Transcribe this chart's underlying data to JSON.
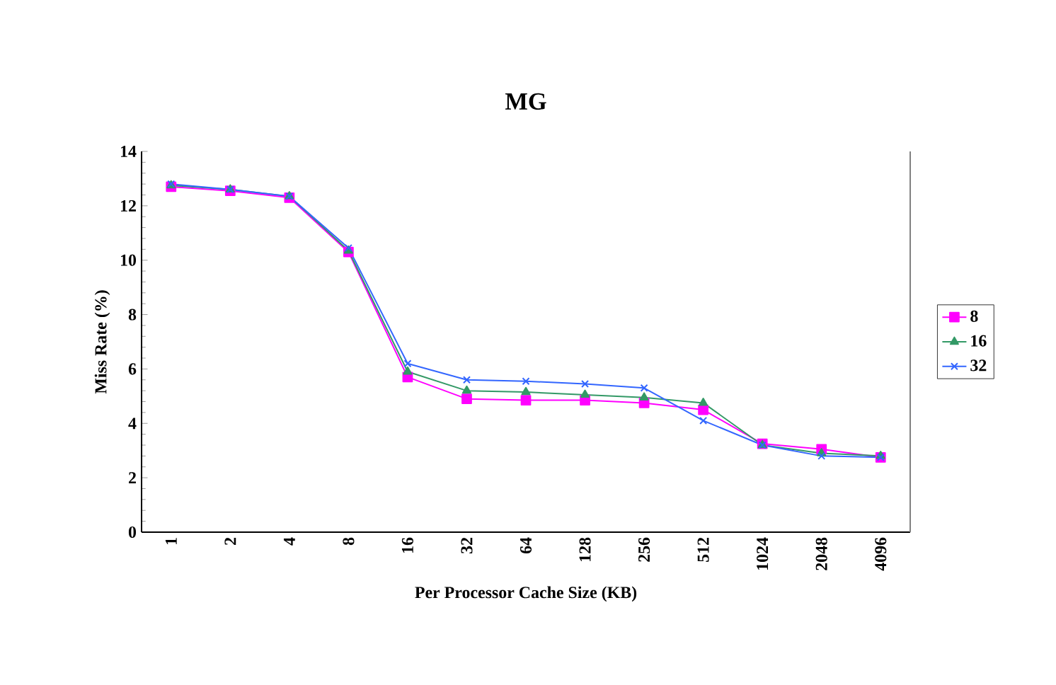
{
  "chart_data": {
    "type": "line",
    "title": "MG",
    "xlabel": "Per Processor Cache Size (KB)",
    "ylabel": "Miss Rate (%)",
    "categories": [
      "1",
      "2",
      "4",
      "8",
      "16",
      "32",
      "64",
      "128",
      "256",
      "512",
      "1024",
      "2048",
      "4096"
    ],
    "series": [
      {
        "name": "8",
        "color": "#ff00ff",
        "marker": "square",
        "values": [
          12.7,
          12.55,
          12.3,
          10.3,
          5.7,
          4.9,
          4.85,
          4.85,
          4.75,
          4.5,
          3.25,
          3.05,
          2.75
        ]
      },
      {
        "name": "16",
        "color": "#339966",
        "marker": "triangle",
        "values": [
          12.75,
          12.6,
          12.35,
          10.35,
          5.9,
          5.2,
          5.15,
          5.05,
          4.95,
          4.75,
          3.2,
          2.9,
          2.8
        ]
      },
      {
        "name": "32",
        "color": "#3366ff",
        "marker": "cross",
        "values": [
          12.8,
          12.6,
          12.35,
          10.45,
          6.2,
          5.6,
          5.55,
          5.45,
          5.3,
          4.1,
          3.2,
          2.8,
          2.75
        ]
      }
    ],
    "ylim": [
      0,
      14
    ],
    "yticks": [
      0,
      2,
      4,
      6,
      8,
      10,
      12,
      14
    ],
    "grid": false,
    "legend": "right",
    "line_style": "solid"
  }
}
